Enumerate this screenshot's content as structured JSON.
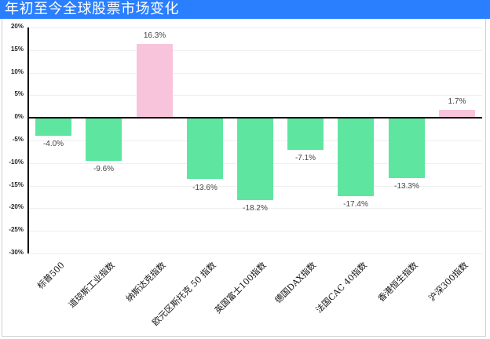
{
  "title": "年初至今全球股票市场变化",
  "colors": {
    "title_bar": "#2a7fff",
    "positive": "#f8c4dc",
    "negative": "#5ee6a0",
    "axis": "#000000",
    "grid": "#efefef"
  },
  "yaxis": {
    "ticks": [
      "20%",
      "15%",
      "10%",
      "5%",
      "0%",
      "-5%",
      "-10%",
      "-15%",
      "-20%",
      "-25%",
      "-30%"
    ]
  },
  "bars": [
    {
      "label": "标普500",
      "value": -4.0,
      "display": "-4.0%"
    },
    {
      "label": "道琼斯工业指数",
      "value": -9.6,
      "display": "-9.6%"
    },
    {
      "label": "纳斯达克指数",
      "value": 16.3,
      "display": "16.3%"
    },
    {
      "label": "欧元区斯托克 50 指数",
      "value": -13.6,
      "display": "-13.6%"
    },
    {
      "label": "英国富士100指数",
      "value": -18.2,
      "display": "-18.2%"
    },
    {
      "label": "德国DAX指数",
      "value": -7.1,
      "display": "-7.1%"
    },
    {
      "label": "法国CAC 40指数",
      "value": -17.4,
      "display": "-17.4%"
    },
    {
      "label": "香港恒生指数",
      "value": -13.3,
      "display": "-13.3%"
    },
    {
      "label": "沪深300指数",
      "value": 1.7,
      "display": "1.7%"
    }
  ],
  "chart_data": {
    "type": "bar",
    "title": "年初至今全球股票市场变化",
    "categories": [
      "标普500",
      "道琼斯工业指数",
      "纳斯达克指数",
      "欧元区斯托克 50 指数",
      "英国富士100指数",
      "德国DAX指数",
      "法国CAC 40指数",
      "香港恒生指数",
      "沪深300指数"
    ],
    "values": [
      -4.0,
      -9.6,
      16.3,
      -13.6,
      -18.2,
      -7.1,
      -17.4,
      -13.3,
      1.7
    ],
    "data_labels": [
      "-4.0%",
      "-9.6%",
      "16.3%",
      "-13.6%",
      "-18.2%",
      "-7.1%",
      "-17.4%",
      "-13.3%",
      "1.7%"
    ],
    "xlabel": "",
    "ylabel": "",
    "ylim": [
      -30,
      20
    ],
    "ytick_step": 5,
    "ytick_format": "percent",
    "grid": true,
    "legend": null,
    "colors": {
      "positive": "#f8c4dc",
      "negative": "#5ee6a0"
    }
  }
}
